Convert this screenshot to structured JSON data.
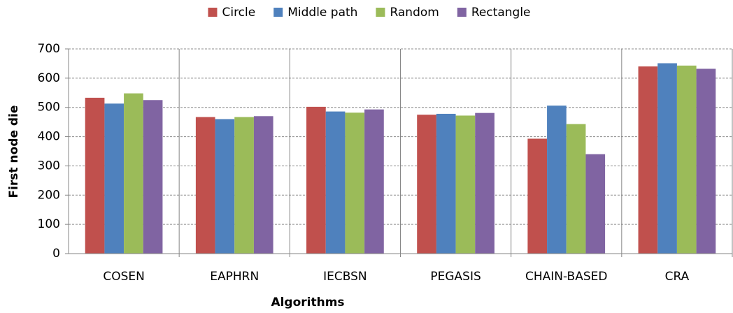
{
  "chart_data": {
    "type": "bar",
    "xlabel": "Algorithms",
    "ylabel": "First node die",
    "categories": [
      "COSEN",
      "EAPHRN",
      "IECBSN",
      "PEGASIS",
      "CHAIN-BASED",
      "CRA"
    ],
    "series": [
      {
        "name": "Circle",
        "color": "#c0504d",
        "values": [
          533,
          467,
          502,
          475,
          393,
          640
        ]
      },
      {
        "name": "Middle path",
        "color": "#4f81bd",
        "values": [
          513,
          460,
          486,
          478,
          506,
          651
        ]
      },
      {
        "name": "Random",
        "color": "#9bbb59",
        "values": [
          548,
          467,
          482,
          472,
          443,
          643
        ]
      },
      {
        "name": "Rectangle",
        "color": "#8064a2",
        "values": [
          525,
          470,
          493,
          481,
          340,
          632
        ]
      }
    ],
    "ylim": [
      0,
      700
    ],
    "yticks": [
      0,
      100,
      200,
      300,
      400,
      500,
      600,
      700
    ],
    "grid": true,
    "legend": "top"
  }
}
